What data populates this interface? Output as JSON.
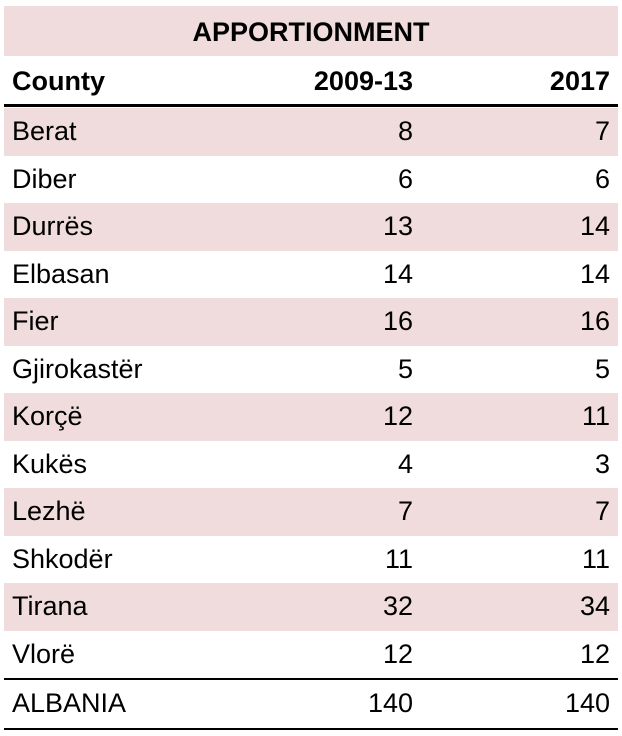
{
  "table": {
    "title": "APPORTIONMENT",
    "header": [
      "County",
      "2009-13",
      "2017"
    ],
    "rows": [
      [
        "Berat",
        8,
        7
      ],
      [
        "Diber",
        6,
        6
      ],
      [
        "Durrës",
        13,
        14
      ],
      [
        "Elbasan",
        14,
        14
      ],
      [
        "Fier",
        16,
        16
      ],
      [
        "Gjirokastër",
        5,
        5
      ],
      [
        "Korçë",
        12,
        11
      ],
      [
        "Kukës",
        4,
        3
      ],
      [
        "Lezhë",
        7,
        7
      ],
      [
        "Shkodër",
        11,
        11
      ],
      [
        "Tirana",
        32,
        34
      ],
      [
        "Vlorë",
        12,
        12
      ]
    ],
    "total": [
      "ALBANIA",
      140,
      140
    ]
  }
}
